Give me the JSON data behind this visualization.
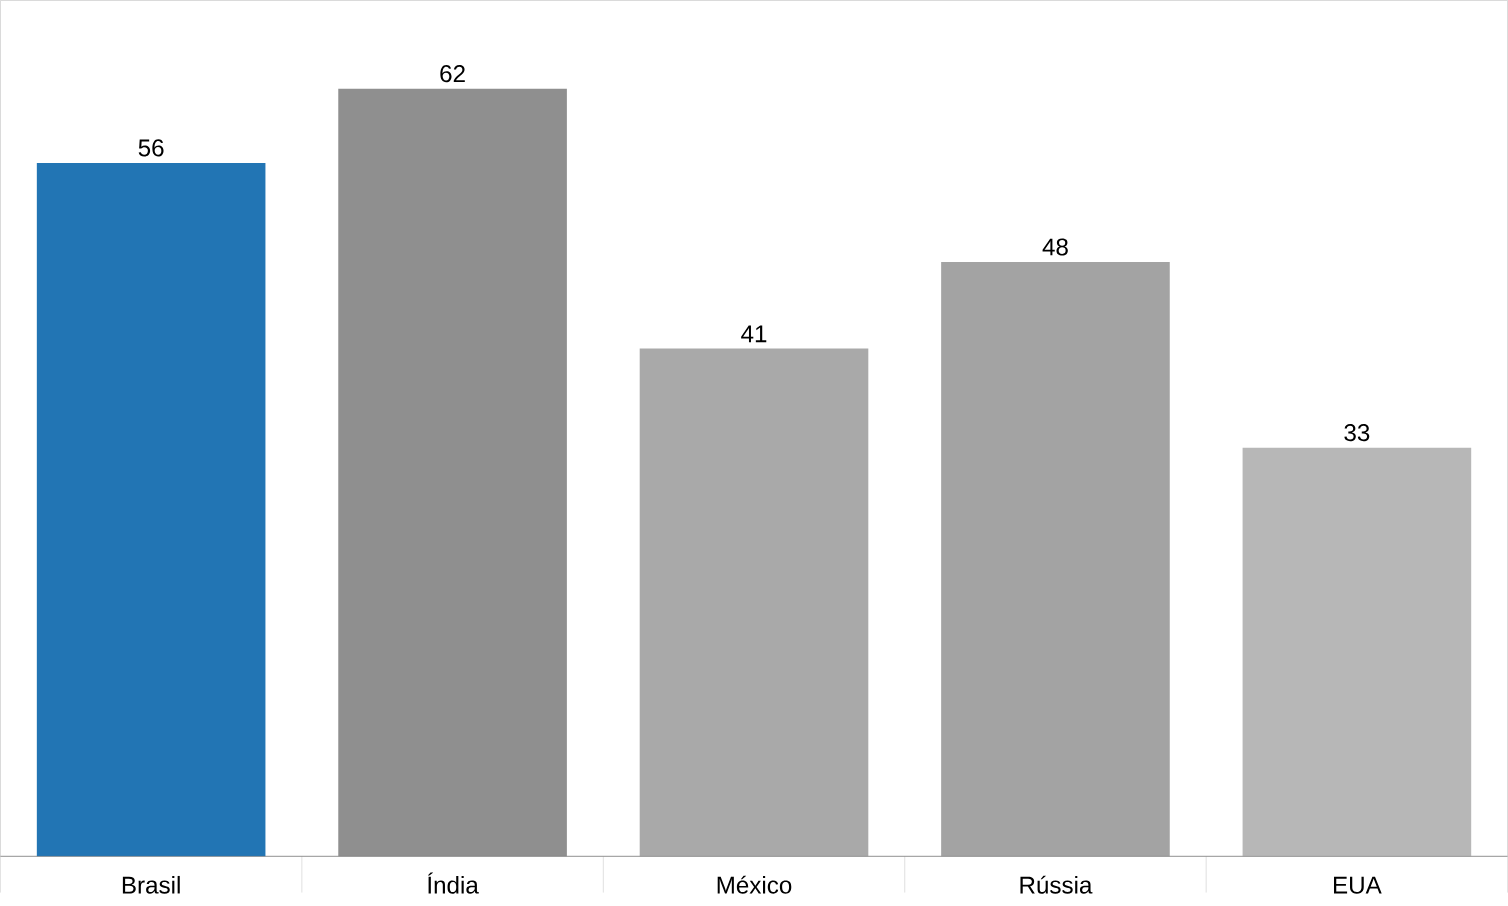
{
  "chart_data": {
    "type": "bar",
    "categories": [
      "Brasil",
      "Índia",
      "México",
      "Rússia",
      "EUA"
    ],
    "values": [
      56,
      62,
      41,
      48,
      33
    ],
    "colors": [
      "#2275b4",
      "#8f8f8f",
      "#a9a9a9",
      "#a3a3a3",
      "#b7b7b7"
    ],
    "data_labels": true
  }
}
